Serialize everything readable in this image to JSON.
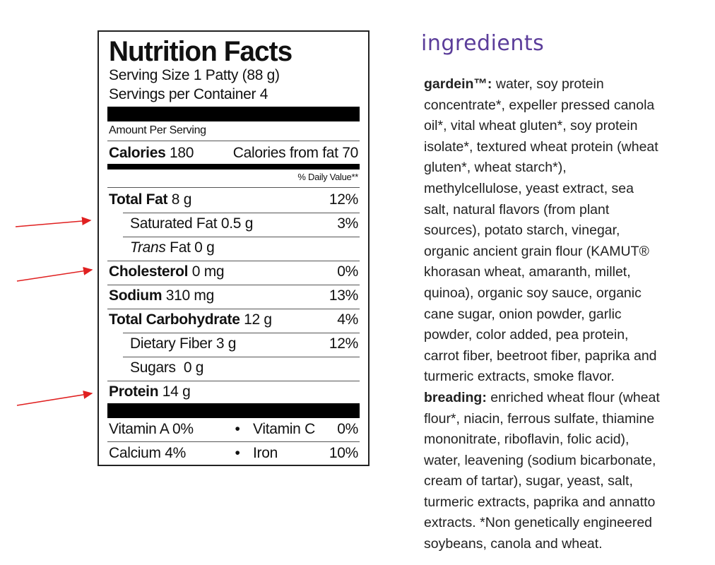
{
  "label": {
    "title": "Nutrition Facts",
    "serving_size": "Serving Size 1 Patty (88 g)",
    "servings_per_container": "Servings per Container 4",
    "amount_per_serving": "Amount Per Serving",
    "calories_label": "Calories",
    "calories_value": "180",
    "calories_from_fat": "Calories from fat 70",
    "daily_value_header": "% Daily Value**",
    "rows": [
      {
        "name": "Total Fat",
        "value": "8 g",
        "pct": "12%"
      },
      {
        "name": "Saturated Fat",
        "value": "0.5 g",
        "pct": "3%"
      },
      {
        "name_italic": "Trans",
        "name": "Fat",
        "value": "0 g",
        "pct": ""
      },
      {
        "name": "Cholesterol",
        "value": "0 mg",
        "pct": "0%"
      },
      {
        "name": "Sodium",
        "value": "310 mg",
        "pct": "13%"
      },
      {
        "name": "Total Carbohydrate",
        "value": "12 g",
        "pct": "4%"
      },
      {
        "name": "Dietary Fiber",
        "value": "3 g",
        "pct": "12%"
      },
      {
        "name": "Sugars",
        "value": "0 g",
        "pct": ""
      },
      {
        "name": "Protein",
        "value": "14 g",
        "pct": ""
      }
    ],
    "vitamins": [
      {
        "left": "Vitamin A 0%",
        "sep": "•",
        "right_name": "Vitamin C",
        "right_pct": "0%"
      },
      {
        "left": "Calcium 4%",
        "sep": "•",
        "right_name": "Iron",
        "right_pct": "10%"
      }
    ]
  },
  "ingredients": {
    "title": "ingredients",
    "lines": [
      {
        "bold": "gardein™:",
        "text": " water, soy protein"
      },
      {
        "text": "concentrate*, expeller pressed canola"
      },
      {
        "text": "oil*, vital wheat gluten*, soy protein"
      },
      {
        "text": "isolate*, textured wheat protein (wheat"
      },
      {
        "text": "gluten*, wheat starch*),"
      },
      {
        "text": "methylcellulose, yeast extract, sea"
      },
      {
        "text": "salt, natural flavors (from plant"
      },
      {
        "text": "sources), potato starch, vinegar,"
      },
      {
        "text": "organic ancient grain flour (KAMUT®"
      },
      {
        "text": "khorasan wheat, amaranth, millet,"
      },
      {
        "text": "quinoa), organic soy sauce, organic"
      },
      {
        "text": "cane sugar, onion powder, garlic"
      },
      {
        "text": "powder, color added, pea protein,"
      },
      {
        "text": "carrot fiber, beetroot fiber, paprika and"
      },
      {
        "text": "turmeric extracts, smoke flavor."
      },
      {
        "bold": "breading:",
        "text": " enriched wheat flour (wheat"
      },
      {
        "text": "flour*, niacin, ferrous sulfate, thiamine"
      },
      {
        "text": "mononitrate, riboflavin, folic acid),"
      },
      {
        "text": "water, leavening (sodium bicarbonate,"
      },
      {
        "text": "cream of tartar), sugar, yeast, salt,"
      },
      {
        "text": "turmeric extracts, paprika and annatto"
      },
      {
        "text": "extracts.  *Non genetically engineered"
      },
      {
        "text": "soybeans, canola and wheat."
      }
    ]
  },
  "colors": {
    "arrow": "#e02020",
    "ingredients_title": "#5b3d9a"
  }
}
